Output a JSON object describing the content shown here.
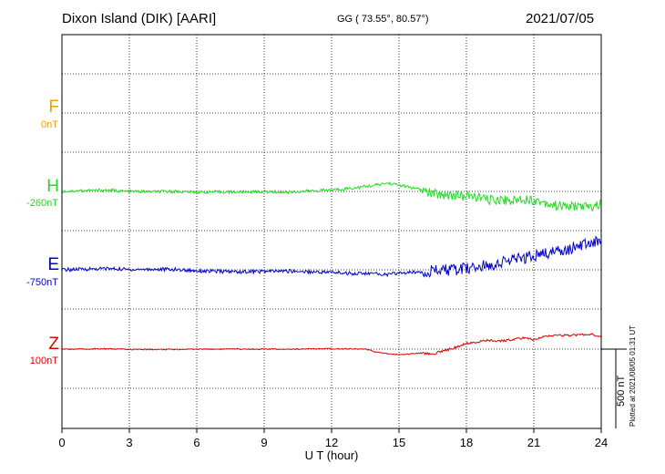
{
  "header": {
    "title": "Dixon Island (DIK)  [AARI]",
    "coords": "GG ( 73.55°,  80.57°)",
    "date": "2021/07/05"
  },
  "footer": {
    "plotted": "Plotted at 2021/08/05 01:31  UT",
    "scale_label": "500 nT"
  },
  "chart_data": {
    "type": "line",
    "xlabel": "U T (hour)",
    "xlim": [
      0,
      24
    ],
    "xticks": [
      "0",
      "3",
      "6",
      "9",
      "12",
      "15",
      "18",
      "21",
      "24"
    ],
    "grid": true,
    "scale_bar_nT": 500,
    "series": [
      {
        "name": "F",
        "baseline_label": "0nT",
        "color": "#f0a000",
        "x": [],
        "values": []
      },
      {
        "name": "H",
        "baseline_label": "-260nT",
        "color": "#22dd22",
        "x": [
          0,
          1,
          2,
          3,
          4,
          5,
          6,
          7,
          8,
          9,
          10,
          11,
          12,
          13,
          14,
          14.5,
          15,
          15.5,
          16,
          16.5,
          17,
          17.5,
          18,
          18.5,
          19,
          19.5,
          20,
          20.5,
          21,
          21.5,
          22,
          22.5,
          23,
          23.5,
          24
        ],
        "values": [
          0,
          6,
          8,
          0,
          -2,
          0,
          -5,
          -4,
          -4,
          -2,
          -5,
          2,
          10,
          22,
          40,
          52,
          40,
          25,
          10,
          -15,
          -20,
          -25,
          -30,
          -35,
          -55,
          -50,
          -60,
          -45,
          -55,
          -70,
          -90,
          -95,
          -90,
          -100,
          -80
        ]
      },
      {
        "name": "E",
        "baseline_label": "-750nT",
        "color": "#0000cc",
        "x": [
          0,
          1,
          2,
          3,
          4,
          5,
          6,
          7,
          8,
          9,
          10,
          11,
          12,
          13,
          14,
          14.5,
          15,
          15.5,
          16,
          16.5,
          17,
          17.5,
          18,
          18.5,
          19,
          19.5,
          20,
          20.5,
          21,
          21.5,
          22,
          22.5,
          23,
          23.5,
          24
        ],
        "values": [
          0,
          4,
          8,
          2,
          4,
          2,
          -6,
          -10,
          -12,
          -10,
          -8,
          -12,
          -16,
          -22,
          -25,
          -30,
          -20,
          -18,
          -10,
          -8,
          0,
          -4,
          10,
          15,
          30,
          45,
          60,
          72,
          90,
          100,
          120,
          130,
          150,
          170,
          185
        ]
      },
      {
        "name": "Z",
        "baseline_label": "100nT",
        "color": "#dd0000",
        "x": [
          0,
          1,
          2,
          3,
          4,
          5,
          6,
          7,
          8,
          9,
          10,
          11,
          12,
          13,
          13.5,
          14,
          15,
          15.5,
          16,
          16.5,
          17,
          17.5,
          18,
          18.5,
          19,
          19.5,
          20,
          20.5,
          21,
          21.5,
          22,
          22.5,
          23,
          23.5,
          24
        ],
        "values": [
          0,
          0,
          2,
          -2,
          -2,
          -2,
          0,
          0,
          0,
          0,
          0,
          1,
          2,
          2,
          0,
          -20,
          -35,
          -30,
          -25,
          -30,
          -10,
          10,
          35,
          45,
          55,
          50,
          60,
          70,
          60,
          80,
          90,
          85,
          90,
          95,
          80
        ]
      }
    ]
  }
}
